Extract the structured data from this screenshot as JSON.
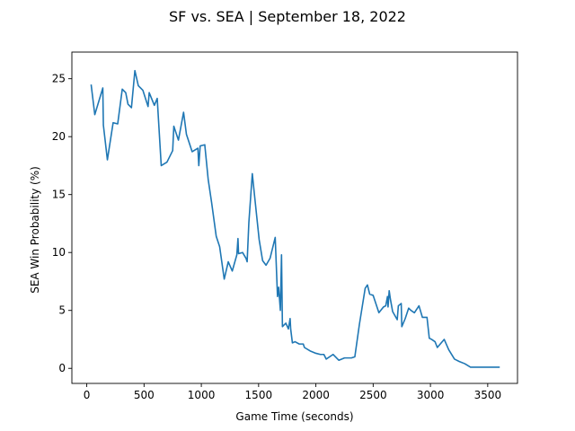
{
  "chart_data": {
    "type": "line",
    "title": "SF vs. SEA | September 18, 2022",
    "xlabel": "Game Time (seconds)",
    "ylabel": "SEA Win Probability (%)",
    "xlim": [
      -130,
      3760
    ],
    "ylim": [
      -1.3,
      27.3
    ],
    "xticks": [
      0,
      500,
      1000,
      1500,
      2000,
      2500,
      3000,
      3500
    ],
    "yticks": [
      0,
      5,
      10,
      15,
      20,
      25
    ],
    "grid": false,
    "line_color": "#1f77b4",
    "series": [
      {
        "x": [
          38,
          70,
          140,
          145,
          180,
          230,
          270,
          310,
          340,
          360,
          390,
          420,
          450,
          490,
          535,
          545,
          590,
          615,
          650,
          700,
          750,
          760,
          800,
          845,
          870,
          920,
          970,
          978,
          990,
          1030,
          1060,
          1090,
          1130,
          1160,
          1200,
          1235,
          1270,
          1310,
          1320,
          1325,
          1360,
          1390,
          1400,
          1415,
          1445,
          1470,
          1505,
          1535,
          1565,
          1600,
          1645,
          1665,
          1675,
          1690,
          1700,
          1708,
          1718,
          1738,
          1760,
          1775,
          1780,
          1795,
          1818,
          1855,
          1890,
          1900,
          1950,
          2000,
          2040,
          2070,
          2090,
          2150,
          2200,
          2250,
          2310,
          2340,
          2380,
          2430,
          2450,
          2470,
          2500,
          2550,
          2590,
          2610,
          2625,
          2630,
          2640,
          2650,
          2670,
          2710,
          2720,
          2745,
          2750,
          2780,
          2810,
          2830,
          2860,
          2900,
          2930,
          2970,
          2990,
          3010,
          3040,
          3060,
          3120,
          3160,
          3210,
          3250,
          3300,
          3350,
          3400,
          3450,
          3500,
          3550,
          3590,
          3605
        ],
        "y": [
          24.5,
          21.9,
          24.2,
          21.0,
          18.0,
          21.2,
          21.1,
          24.1,
          23.8,
          22.8,
          22.5,
          25.7,
          24.4,
          24.0,
          22.6,
          23.8,
          22.7,
          23.3,
          17.5,
          17.8,
          18.8,
          20.9,
          19.7,
          22.1,
          20.2,
          18.7,
          19.0,
          17.5,
          19.2,
          19.3,
          16.3,
          14.3,
          11.4,
          10.5,
          7.7,
          9.2,
          8.4,
          9.8,
          11.2,
          9.9,
          10.0,
          9.5,
          9.2,
          12.6,
          16.8,
          14.4,
          11.1,
          9.3,
          8.9,
          9.5,
          11.3,
          6.2,
          7.0,
          5.0,
          9.8,
          3.6,
          3.7,
          3.9,
          3.4,
          4.3,
          3.4,
          2.2,
          2.3,
          2.1,
          2.1,
          1.8,
          1.5,
          1.3,
          1.2,
          1.2,
          0.8,
          1.2,
          0.7,
          0.9,
          0.9,
          1.0,
          3.8,
          6.9,
          7.2,
          6.4,
          6.3,
          4.8,
          5.3,
          5.4,
          6.2,
          5.3,
          6.7,
          6.0,
          4.9,
          4.2,
          5.4,
          5.6,
          3.6,
          4.3,
          5.2,
          5.0,
          4.8,
          5.4,
          4.4,
          4.4,
          2.6,
          2.5,
          2.3,
          1.8,
          2.5,
          1.6,
          0.8,
          0.6,
          0.4,
          0.1,
          0.1,
          0.1,
          0.1,
          0.1,
          0.1,
          0.1
        ]
      }
    ]
  }
}
